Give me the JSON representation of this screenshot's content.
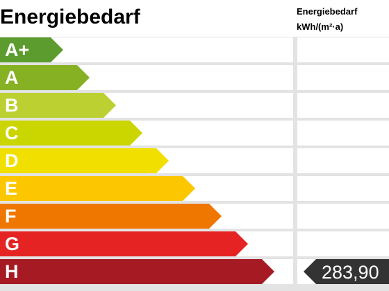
{
  "title": "Energiebedarf",
  "column_header": {
    "line1": "Energiebedarf",
    "line2": "kWh/(m²·a)"
  },
  "classes": [
    {
      "label": "A+",
      "color": "#5c9c2e"
    },
    {
      "label": "A",
      "color": "#86b123"
    },
    {
      "label": "B",
      "color": "#bcd131"
    },
    {
      "label": "C",
      "color": "#cbd500"
    },
    {
      "label": "D",
      "color": "#f1df00"
    },
    {
      "label": "E",
      "color": "#fdc700"
    },
    {
      "label": "F",
      "color": "#ef7700"
    },
    {
      "label": "G",
      "color": "#e52323"
    },
    {
      "label": "H",
      "color": "#a61b23"
    }
  ],
  "indicator": {
    "class": "H",
    "value": "283,90",
    "color": "#333333"
  }
}
